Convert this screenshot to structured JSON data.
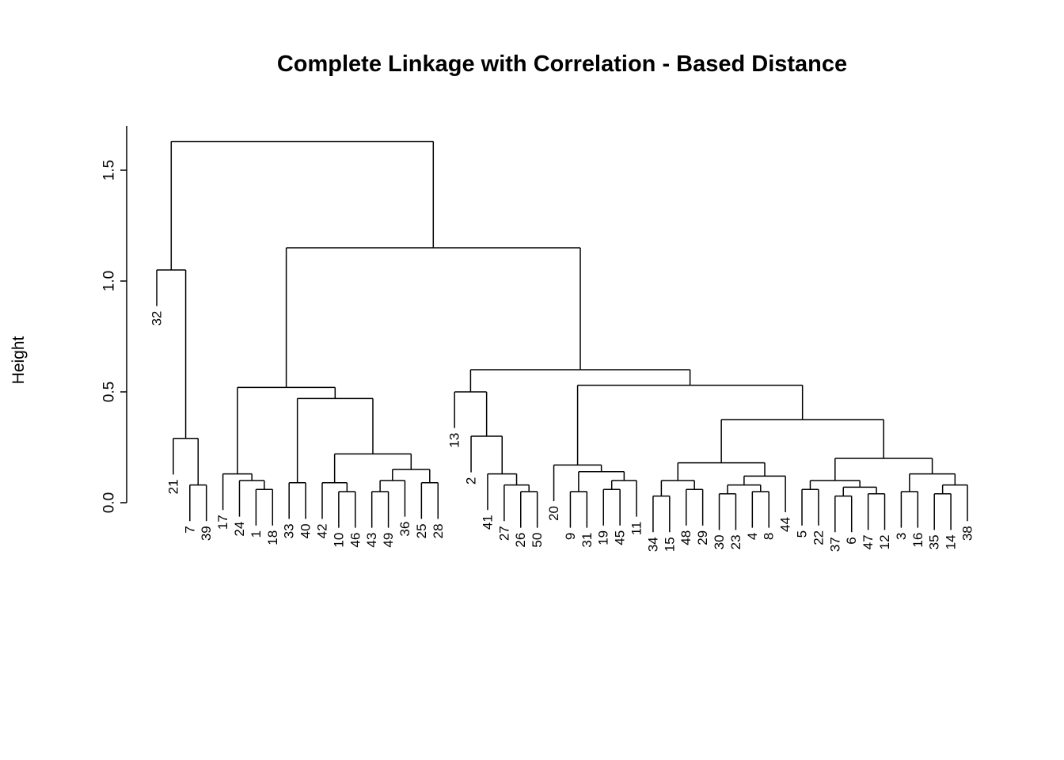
{
  "chart_data": {
    "type": "dendrogram",
    "title": "Complete Linkage with Correlation - Based Distance",
    "ylabel": "Height",
    "yticks": [
      0,
      0.5,
      1,
      1.5
    ],
    "ytick_labels": [
      "0.0",
      "0.5",
      "1.0",
      "1.5"
    ],
    "ylim": [
      0,
      1.7
    ],
    "hang": 0.1,
    "root_height": 1.63,
    "line_color": "#000000",
    "text_color": "#000000",
    "background": "#ffffff",
    "leaf_order": [
      32,
      21,
      7,
      39,
      17,
      24,
      1,
      18,
      33,
      40,
      42,
      10,
      46,
      43,
      49,
      36,
      25,
      28,
      13,
      2,
      41,
      27,
      26,
      50,
      20,
      9,
      31,
      19,
      45,
      11,
      34,
      15,
      48,
      29,
      30,
      23,
      4,
      8,
      44,
      5,
      22,
      37,
      6,
      47,
      12,
      3,
      16,
      35,
      14,
      38
    ],
    "tree": {
      "h": 1.63,
      "c": [
        {
          "h": 1.05,
          "c": [
            32,
            {
              "h": 0.29,
              "c": [
                21,
                {
                  "h": 0.08,
                  "c": [
                    7,
                    39
                  ]
                }
              ]
            }
          ]
        },
        {
          "h": 1.15,
          "c": [
            {
              "h": 0.52,
              "c": [
                {
                  "h": 0.13,
                  "c": [
                    17,
                    {
                      "h": 0.1,
                      "c": [
                        24,
                        {
                          "h": 0.06,
                          "c": [
                            1,
                            18
                          ]
                        }
                      ]
                    }
                  ]
                },
                {
                  "h": 0.47,
                  "c": [
                    {
                      "h": 0.09,
                      "c": [
                        33,
                        40
                      ]
                    },
                    {
                      "h": 0.22,
                      "c": [
                        {
                          "h": 0.09,
                          "c": [
                            42,
                            {
                              "h": 0.05,
                              "c": [
                                10,
                                46
                              ]
                            }
                          ]
                        },
                        {
                          "h": 0.15,
                          "c": [
                            {
                              "h": 0.1,
                              "c": [
                                {
                                  "h": 0.05,
                                  "c": [
                                    43,
                                    49
                                  ]
                                },
                                36
                              ]
                            },
                            {
                              "h": 0.09,
                              "c": [
                                25,
                                28
                              ]
                            }
                          ]
                        }
                      ]
                    }
                  ]
                }
              ]
            },
            {
              "h": 0.6,
              "c": [
                {
                  "h": 0.5,
                  "c": [
                    13,
                    {
                      "h": 0.3,
                      "c": [
                        2,
                        {
                          "h": 0.13,
                          "c": [
                            41,
                            {
                              "h": 0.08,
                              "c": [
                                27,
                                {
                                  "h": 0.05,
                                  "c": [
                                    26,
                                    50
                                  ]
                                }
                              ]
                            }
                          ]
                        }
                      ]
                    }
                  ]
                },
                {
                  "h": 0.53,
                  "c": [
                    {
                      "h": 0.17,
                      "c": [
                        20,
                        {
                          "h": 0.14,
                          "c": [
                            {
                              "h": 0.05,
                              "c": [
                                9,
                                31
                              ]
                            },
                            {
                              "h": 0.1,
                              "c": [
                                {
                                  "h": 0.06,
                                  "c": [
                                    19,
                                    45
                                  ]
                                },
                                11
                              ]
                            }
                          ]
                        }
                      ]
                    },
                    {
                      "h": 0.375,
                      "c": [
                        {
                          "h": 0.18,
                          "c": [
                            {
                              "h": 0.1,
                              "c": [
                                {
                                  "h": 0.03,
                                  "c": [
                                    34,
                                    15
                                  ]
                                },
                                {
                                  "h": 0.06,
                                  "c": [
                                    48,
                                    29
                                  ]
                                }
                              ]
                            },
                            {
                              "h": 0.12,
                              "c": [
                                {
                                  "h": 0.08,
                                  "c": [
                                    {
                                      "h": 0.04,
                                      "c": [
                                        30,
                                        23
                                      ]
                                    },
                                    {
                                      "h": 0.05,
                                      "c": [
                                        4,
                                        8
                                      ]
                                    }
                                  ]
                                },
                                44
                              ]
                            }
                          ]
                        },
                        {
                          "h": 0.2,
                          "c": [
                            {
                              "h": 0.1,
                              "c": [
                                {
                                  "h": 0.06,
                                  "c": [
                                    5,
                                    22
                                  ]
                                },
                                {
                                  "h": 0.07,
                                  "c": [
                                    {
                                      "h": 0.03,
                                      "c": [
                                        37,
                                        6
                                      ]
                                    },
                                    {
                                      "h": 0.04,
                                      "c": [
                                        47,
                                        12
                                      ]
                                    }
                                  ]
                                }
                              ]
                            },
                            {
                              "h": 0.13,
                              "c": [
                                {
                                  "h": 0.05,
                                  "c": [
                                    3,
                                    16
                                  ]
                                },
                                {
                                  "h": 0.08,
                                  "c": [
                                    {
                                      "h": 0.04,
                                      "c": [
                                        35,
                                        14
                                      ]
                                    },
                                    38
                                  ]
                                }
                              ]
                            }
                          ]
                        }
                      ]
                    }
                  ]
                }
              ]
            }
          ]
        }
      ]
    }
  }
}
